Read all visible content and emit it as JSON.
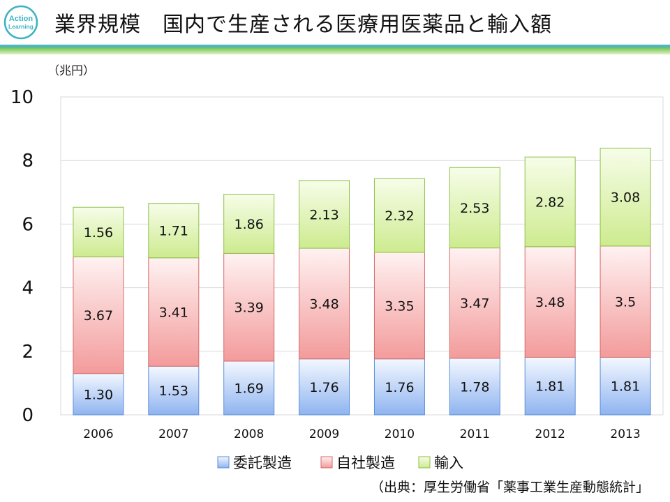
{
  "header": {
    "logo_text_top": "Action",
    "logo_text_bottom": "Learning",
    "title": "業界規模　国内で生産される医療用医薬品と輸入額"
  },
  "colors": {
    "rule_green": "#8dc63f",
    "rule_teal": "#4fb7c3",
    "logo_teal": "#3bb3c3",
    "series_blue": "#8fb4f0",
    "series_red": "#f5a3a3",
    "series_green": "#d2f09a"
  },
  "chart_data": {
    "type": "bar",
    "stacked": true,
    "unit_label": "（兆円）",
    "categories": [
      "2006",
      "2007",
      "2008",
      "2009",
      "2010",
      "2011",
      "2012",
      "2013"
    ],
    "series": [
      {
        "name": "委託製造",
        "values": [
          1.3,
          1.53,
          1.69,
          1.76,
          1.76,
          1.78,
          1.81,
          1.81
        ],
        "labels": [
          "1.30",
          "1.53",
          "1.69",
          "1.76",
          "1.76",
          "1.78",
          "1.81",
          "1.81"
        ]
      },
      {
        "name": "自社製造",
        "values": [
          3.67,
          3.41,
          3.39,
          3.48,
          3.35,
          3.47,
          3.48,
          3.5
        ],
        "labels": [
          "3.67",
          "3.41",
          "3.39",
          "3.48",
          "3.35",
          "3.47",
          "3.48",
          "3.5"
        ]
      },
      {
        "name": "輸入",
        "values": [
          1.56,
          1.71,
          1.86,
          2.13,
          2.32,
          2.53,
          2.82,
          3.08
        ],
        "labels": [
          "1.56",
          "1.71",
          "1.86",
          "2.13",
          "2.32",
          "2.53",
          "2.82",
          "3.08"
        ]
      }
    ],
    "ylim": [
      0,
      10
    ],
    "yticks": [
      "0",
      "2",
      "4",
      "6",
      "8",
      "10"
    ],
    "grid": true,
    "legend": "bottom"
  },
  "footer": {
    "source": "（出典：厚生労働省「薬事工業生産動態統計」"
  }
}
